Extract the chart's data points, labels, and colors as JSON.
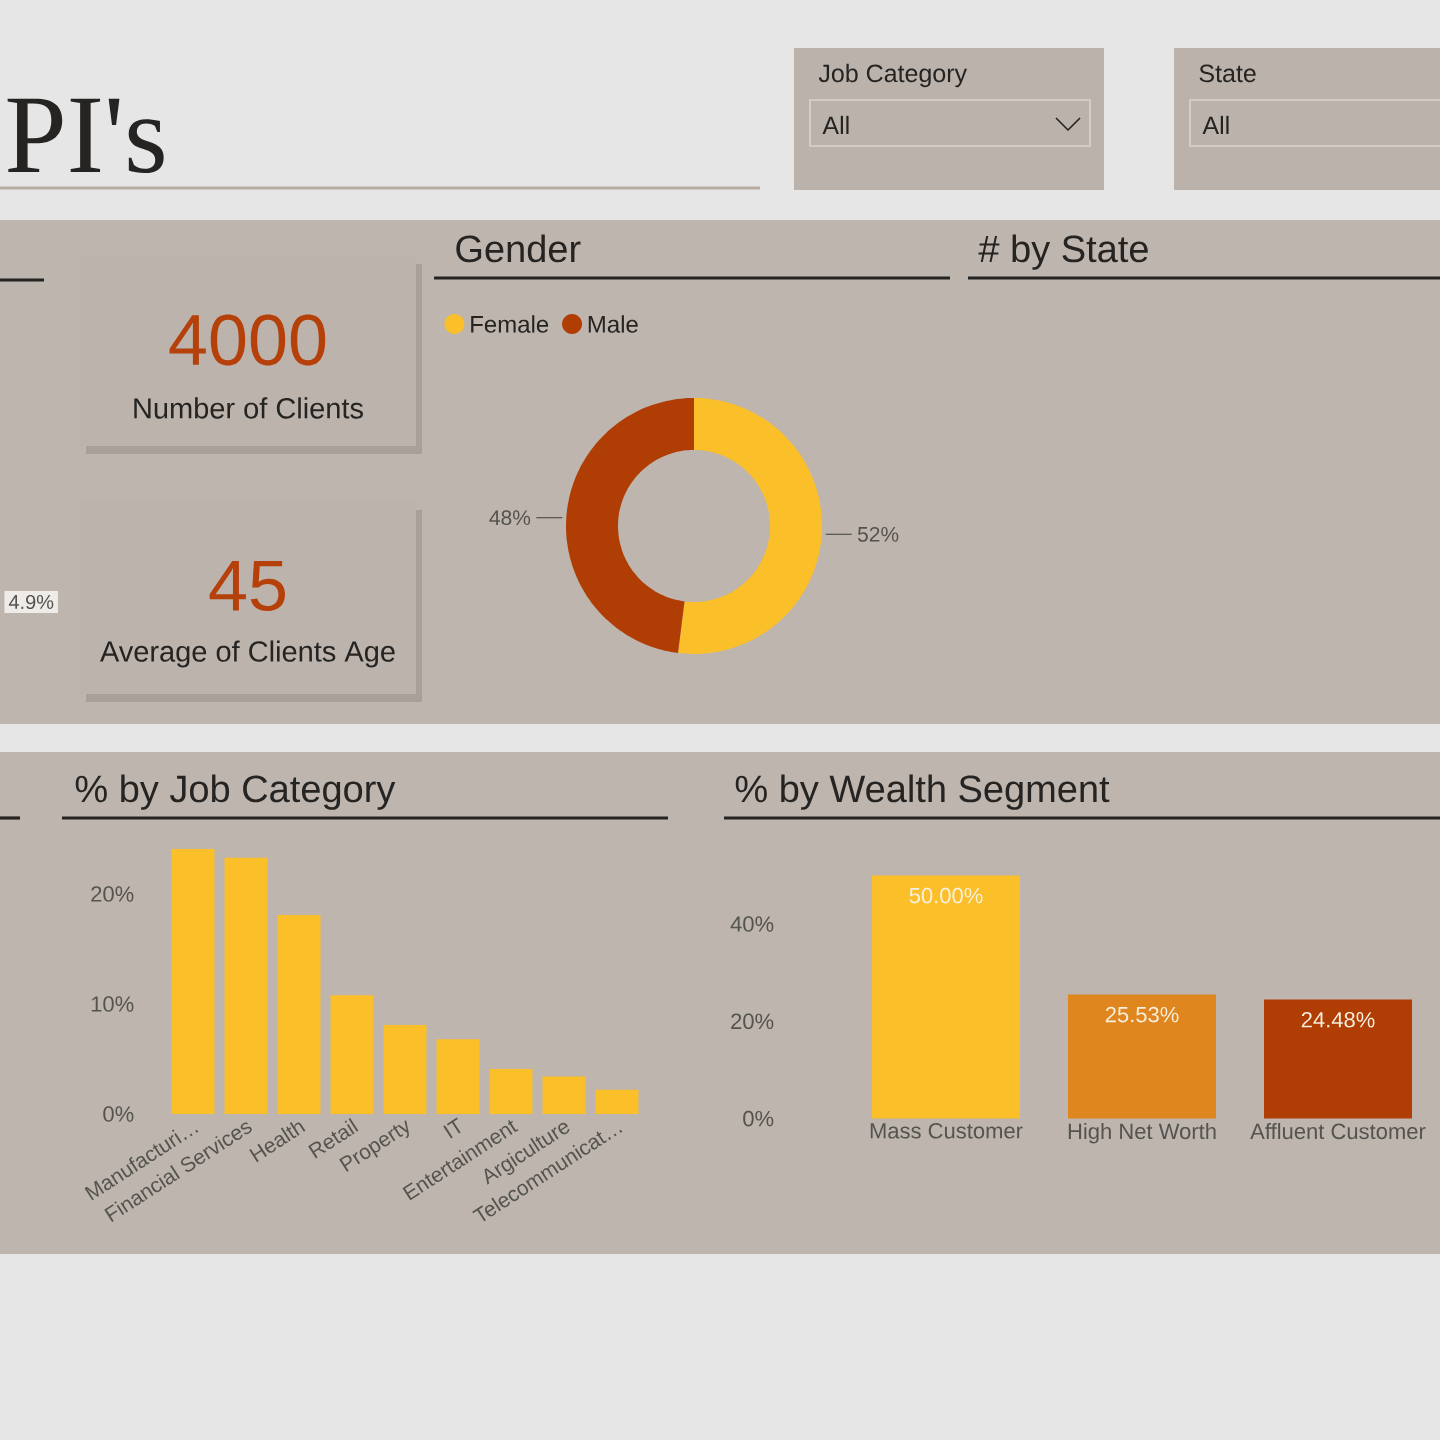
{
  "chart_data": [
    {
      "type": "other",
      "title": "PI's"
    },
    {
      "type": "other",
      "title": "Job Category",
      "annotations": [
        "All"
      ]
    },
    {
      "type": "other",
      "title": "State",
      "annotations": [
        "All"
      ]
    },
    {
      "type": "other",
      "annotations": [
        "4.9%"
      ]
    },
    {
      "type": "other",
      "annotations": [
        "4000",
        "Number of Clients"
      ]
    },
    {
      "type": "other",
      "annotations": [
        "45",
        "Average of Clients Age"
      ]
    },
    {
      "type": "donut",
      "title": "Gender",
      "categories": [
        "Female",
        "Male"
      ],
      "values": [
        52,
        48
      ],
      "colors": [
        "#fbbf2a",
        "#b03e04"
      ],
      "value_labels": [
        "52%",
        "48%"
      ],
      "legend": "top left"
    },
    {
      "type": "other",
      "title": "# by State"
    },
    {
      "type": "bar",
      "title": "% by Job Category",
      "categories": [
        "Manufacturi…",
        "Financial Services",
        "Health",
        "Retail",
        "Property",
        "IT",
        "Entertainment",
        "Argiculture",
        "Telecommunicat…"
      ],
      "values": [
        24.1,
        23.3,
        18.1,
        10.8,
        8.1,
        6.8,
        4.1,
        3.4,
        2.2
      ],
      "color": "#fbbf2a",
      "ylim": [
        0,
        25
      ],
      "yticks": [
        {
          "value": 0,
          "label": "0%"
        },
        {
          "value": 10,
          "label": "10%"
        },
        {
          "value": 20,
          "label": "20%"
        }
      ]
    },
    {
      "type": "bar",
      "title": "% by Wealth Segment",
      "categories": [
        "Mass Customer",
        "High Net Worth",
        "Affluent Customer"
      ],
      "values": [
        50.0,
        25.53,
        24.48
      ],
      "colors": [
        "#fbbf2a",
        "#e0861e",
        "#b03e04"
      ],
      "value_labels": [
        "50.00%",
        "25.53%",
        "24.48%"
      ],
      "ylim": [
        0,
        50
      ],
      "yticks": [
        {
          "value": 0,
          "label": "0%"
        },
        {
          "value": 20,
          "label": "20%"
        },
        {
          "value": 40,
          "label": "40%"
        }
      ]
    }
  ]
}
